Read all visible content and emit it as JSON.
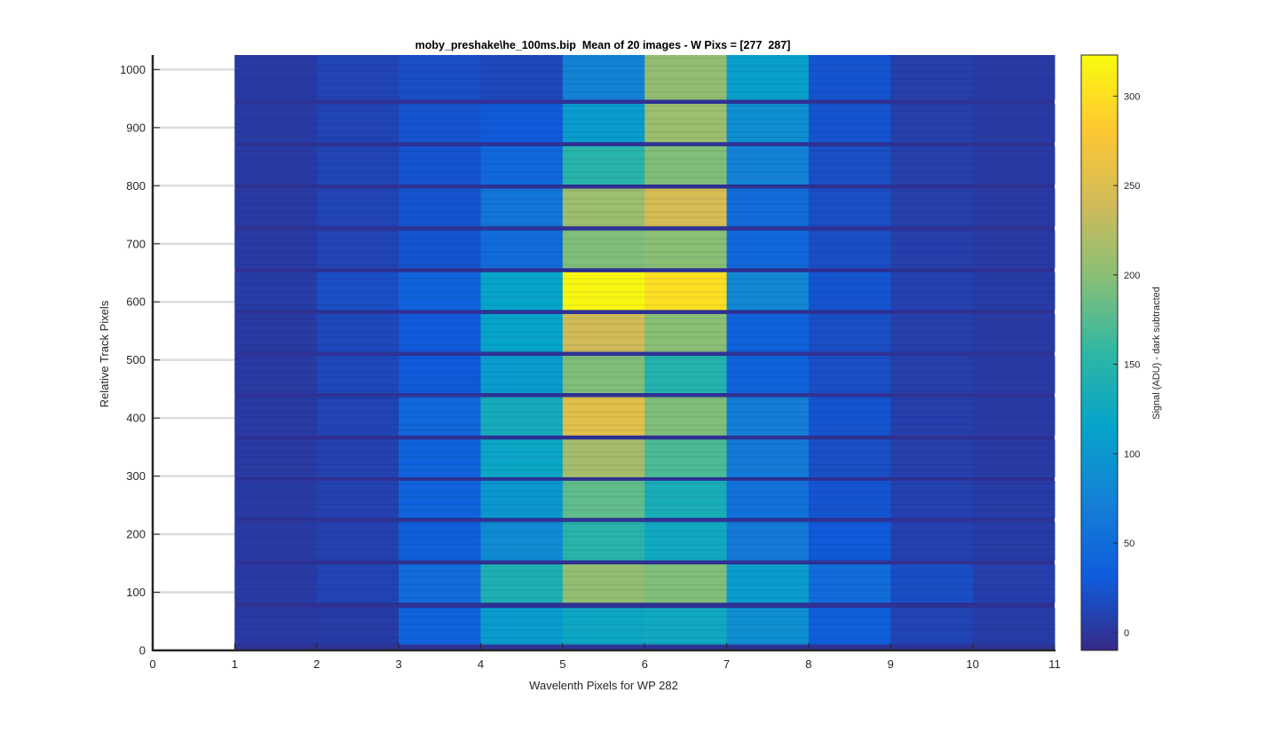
{
  "chart_data": {
    "type": "heatmap",
    "title": "moby_preshake\\he_100ms.bip  Mean of 20 images - W Pixs = [277  287]",
    "xlabel": "Wavelenth Pixels for WP 282",
    "ylabel": "Relative Track Pixels",
    "xlim": [
      0,
      11
    ],
    "ylim": [
      0,
      1025
    ],
    "xticks": [
      0,
      1,
      2,
      3,
      4,
      5,
      6,
      7,
      8,
      9,
      10,
      11
    ],
    "yticks": [
      0,
      100,
      200,
      300,
      400,
      500,
      600,
      700,
      800,
      900,
      1000
    ],
    "x_columns": [
      1,
      2,
      3,
      4,
      5,
      6,
      7,
      8,
      9,
      10
    ],
    "colormap": "parula",
    "grid": "y-major",
    "colorbar": {
      "label": "Signal (ADU) - dark subtracted",
      "clim": [
        -10,
        323
      ],
      "ticks": [
        0,
        50,
        100,
        150,
        200,
        250,
        300
      ]
    },
    "background_level": 5,
    "gap_level": -3,
    "bands": [
      {
        "y0": 10,
        "y1": 73,
        "values": [
          3,
          5,
          40,
          105,
          122,
          125,
          90,
          35,
          12,
          6
        ]
      },
      {
        "y0": 82,
        "y1": 148,
        "values": [
          4,
          12,
          48,
          140,
          205,
          195,
          105,
          50,
          20,
          8
        ]
      },
      {
        "y0": 155,
        "y1": 221,
        "values": [
          4,
          10,
          35,
          85,
          150,
          125,
          65,
          30,
          10,
          5
        ]
      },
      {
        "y0": 228,
        "y1": 292,
        "values": [
          4,
          10,
          40,
          100,
          180,
          135,
          55,
          25,
          10,
          5
        ]
      },
      {
        "y0": 298,
        "y1": 363,
        "values": [
          3,
          10,
          40,
          120,
          215,
          170,
          65,
          20,
          8,
          4
        ]
      },
      {
        "y0": 370,
        "y1": 436,
        "values": [
          3,
          12,
          45,
          130,
          255,
          195,
          70,
          25,
          8,
          4
        ]
      },
      {
        "y0": 443,
        "y1": 507,
        "values": [
          3,
          15,
          30,
          105,
          195,
          145,
          40,
          20,
          8,
          4
        ]
      },
      {
        "y0": 514,
        "y1": 579,
        "values": [
          3,
          15,
          30,
          115,
          240,
          200,
          40,
          20,
          8,
          4
        ]
      },
      {
        "y0": 586,
        "y1": 651,
        "values": [
          5,
          20,
          40,
          115,
          320,
          300,
          80,
          25,
          10,
          5
        ]
      },
      {
        "y0": 658,
        "y1": 723,
        "values": [
          4,
          12,
          25,
          50,
          195,
          200,
          45,
          20,
          8,
          4
        ]
      },
      {
        "y0": 730,
        "y1": 795,
        "values": [
          4,
          12,
          25,
          60,
          210,
          245,
          50,
          20,
          8,
          4
        ]
      },
      {
        "y0": 802,
        "y1": 868,
        "values": [
          4,
          12,
          25,
          45,
          150,
          195,
          75,
          20,
          8,
          4
        ]
      },
      {
        "y0": 875,
        "y1": 941,
        "values": [
          4,
          12,
          25,
          30,
          105,
          210,
          90,
          25,
          8,
          4
        ]
      },
      {
        "y0": 948,
        "y1": 1025,
        "values": [
          4,
          12,
          20,
          15,
          75,
          205,
          110,
          25,
          8,
          4
        ]
      }
    ]
  }
}
